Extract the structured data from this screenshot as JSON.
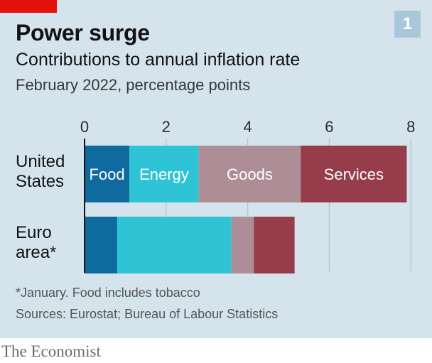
{
  "header": {
    "title": "Power surge",
    "subtitle": "Contributions to annual inflation rate",
    "unit": "February 2022, percentage points",
    "badge": "1"
  },
  "footer": {
    "note": "*January. Food includes tobacco",
    "source": "Sources: Eurostat; Bureau of Labour Statistics",
    "brand": "The Economist"
  },
  "colors": {
    "background": "#d4e3ec",
    "food": "#0f6a9e",
    "energy": "#2ec4d6",
    "goods": "#ad8e97",
    "services": "#963c4b",
    "brand_red": "#e3120b"
  },
  "chart_data": {
    "type": "bar",
    "orientation": "horizontal",
    "stacked": true,
    "categories": [
      [
        "United",
        "States"
      ],
      [
        "Euro",
        "area*"
      ]
    ],
    "series": [
      {
        "name": "Food",
        "values": [
          1.1,
          0.8
        ],
        "color": "#0f6a9e"
      },
      {
        "name": "Energy",
        "values": [
          1.7,
          2.8
        ],
        "color": "#2ec4d6"
      },
      {
        "name": "Goods",
        "values": [
          2.5,
          0.55
        ],
        "color": "#ad8e97"
      },
      {
        "name": "Services",
        "values": [
          2.6,
          1.0
        ],
        "color": "#963c4b"
      }
    ],
    "xlim": [
      0,
      8
    ],
    "xticks": [
      0,
      2,
      4,
      6,
      8
    ],
    "grid": true,
    "legend": "labels inside United States bar"
  }
}
